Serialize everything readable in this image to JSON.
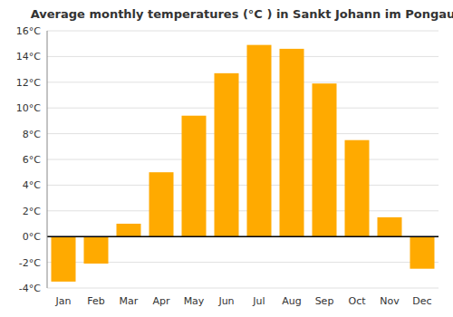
{
  "chart_data": {
    "type": "bar",
    "title": "Average monthly temperatures (°C ) in Sankt Johann im Pongau",
    "categories": [
      "Jan",
      "Feb",
      "Mar",
      "Apr",
      "May",
      "Jun",
      "Jul",
      "Aug",
      "Sep",
      "Oct",
      "Nov",
      "Dec"
    ],
    "values": [
      -3.5,
      -2.1,
      1.0,
      5.0,
      9.4,
      12.7,
      14.9,
      14.6,
      11.9,
      7.5,
      1.5,
      -2.5
    ],
    "color": "#FFAA00",
    "ylim": [
      -4,
      16
    ],
    "yticks": [
      {
        "value": -4,
        "label": "-4°C"
      },
      {
        "value": -2,
        "label": "-2°C"
      },
      {
        "value": 0,
        "label": "0°C"
      },
      {
        "value": 2,
        "label": "2°C"
      },
      {
        "value": 4,
        "label": "4°C"
      },
      {
        "value": 6,
        "label": "6°C"
      },
      {
        "value": 8,
        "label": "8°C"
      },
      {
        "value": 10,
        "label": "10°C"
      },
      {
        "value": 12,
        "label": "12°C"
      },
      {
        "value": 14,
        "label": "14°C"
      },
      {
        "value": 16,
        "label": "16°C"
      }
    ],
    "grid": true
  }
}
